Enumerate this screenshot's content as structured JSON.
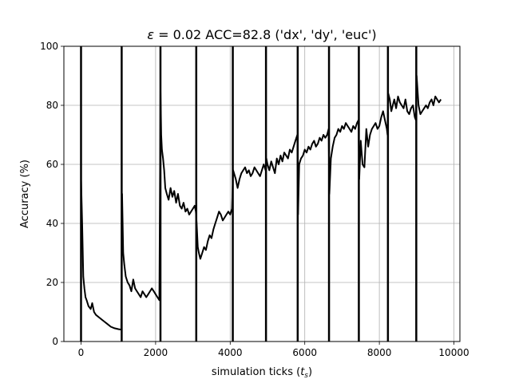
{
  "chart_data": {
    "type": "line",
    "title_prefix": "ε",
    "title_rest": " = 0.02 ACC=82.8 ('dx', 'dy', 'euc')",
    "xlabel_main": "simulation ticks (",
    "xlabel_sym": "t",
    "xlabel_sub": "s",
    "xlabel_close": ")",
    "ylabel": "Accuracy (%)",
    "xlim": [
      -460,
      10160
    ],
    "ylim": [
      0,
      100
    ],
    "x_ticks": [
      0,
      2000,
      4000,
      6000,
      8000,
      10000
    ],
    "x_tick_labels": [
      "0",
      "2000",
      "4000",
      "6000",
      "8000",
      "10000"
    ],
    "y_ticks": [
      0,
      20,
      40,
      60,
      80,
      100
    ],
    "y_tick_labels": [
      "0",
      "20",
      "40",
      "60",
      "80",
      "100"
    ],
    "grid": true,
    "line_color": "#000000",
    "vertical_lines_x": [
      0,
      1090,
      2130,
      3090,
      4070,
      4960,
      5810,
      6650,
      7450,
      8230,
      8990
    ],
    "series": [
      {
        "x": [
          0,
          30,
          60,
          90,
          120,
          150,
          200,
          260,
          300,
          350,
          400,
          500,
          600,
          700,
          800,
          900,
          1000,
          1080,
          1100,
          1130,
          1160,
          1200,
          1250,
          1300,
          1350,
          1400,
          1450,
          1500,
          1550,
          1600,
          1650,
          1700,
          1750,
          1800,
          1850,
          1900,
          1950,
          2000,
          2050,
          2100,
          2130,
          2150,
          2170,
          2200,
          2230,
          2260,
          2300,
          2350,
          2400,
          2450,
          2500,
          2550,
          2600,
          2650,
          2700,
          2750,
          2800,
          2850,
          2900,
          2950,
          3000,
          3050,
          3080,
          3100,
          3130,
          3160,
          3200,
          3250,
          3300,
          3350,
          3400,
          3450,
          3500,
          3550,
          3600,
          3650,
          3700,
          3750,
          3800,
          3850,
          3900,
          3950,
          4000,
          4050,
          4080,
          4150,
          4200,
          4250,
          4300,
          4350,
          4400,
          4450,
          4500,
          4550,
          4600,
          4650,
          4700,
          4750,
          4800,
          4850,
          4900,
          4950,
          4970,
          5000,
          5050,
          5100,
          5150,
          5200,
          5250,
          5300,
          5350,
          5400,
          5450,
          5500,
          5550,
          5600,
          5650,
          5700,
          5750,
          5800,
          5820,
          5850,
          5900,
          5950,
          6000,
          6050,
          6100,
          6150,
          6200,
          6250,
          6300,
          6350,
          6400,
          6450,
          6500,
          6550,
          6600,
          6640,
          6660,
          6700,
          6750,
          6800,
          6850,
          6900,
          6950,
          7000,
          7050,
          7100,
          7150,
          7200,
          7250,
          7300,
          7350,
          7400,
          7440,
          7460,
          7500,
          7550,
          7600,
          7650,
          7700,
          7750,
          7800,
          7850,
          7900,
          7950,
          8000,
          8050,
          8100,
          8150,
          8200,
          8220,
          8240,
          8280,
          8320,
          8360,
          8400,
          8450,
          8500,
          8550,
          8600,
          8650,
          8700,
          8750,
          8800,
          8850,
          8900,
          8950,
          8980,
          9000,
          9050,
          9100,
          9150,
          9200,
          9250,
          9300,
          9350,
          9400,
          9450,
          9500,
          9550,
          9600,
          9650
        ],
        "y": [
          55,
          40,
          22,
          18,
          15,
          14,
          12,
          11,
          13,
          10,
          9,
          8,
          7,
          6,
          5,
          4.5,
          4.2,
          4,
          50,
          30,
          26,
          22,
          20,
          19,
          17,
          21,
          18,
          17,
          16,
          15,
          17,
          16,
          15,
          16,
          17,
          18,
          17,
          16,
          15,
          14,
          85,
          70,
          65,
          62,
          58,
          52,
          50,
          48,
          52,
          49,
          51,
          47,
          50,
          46,
          45,
          47,
          44,
          45,
          43,
          44,
          45,
          46,
          44,
          40,
          32,
          30,
          28,
          30,
          32,
          31,
          34,
          36,
          35,
          38,
          40,
          42,
          44,
          43,
          41,
          42,
          43,
          44,
          43,
          45,
          58,
          55,
          52,
          55,
          57,
          58,
          59,
          57,
          58,
          56,
          57,
          59,
          58,
          57,
          56,
          58,
          60,
          58,
          62,
          60,
          58,
          61,
          59,
          57,
          62,
          60,
          63,
          61,
          64,
          63,
          62,
          65,
          64,
          66,
          68,
          70,
          43,
          60,
          62,
          63,
          65,
          64,
          66,
          65,
          67,
          68,
          66,
          67,
          69,
          68,
          70,
          69,
          70,
          72,
          50,
          62,
          66,
          69,
          70,
          72,
          71,
          73,
          72,
          74,
          73,
          72,
          71,
          73,
          72,
          74,
          75,
          55,
          68,
          60,
          59,
          72,
          66,
          70,
          72,
          73,
          74,
          72,
          73,
          76,
          78,
          75,
          72,
          70,
          84,
          82,
          78,
          80,
          82,
          79,
          83,
          81,
          80,
          79,
          82,
          78,
          77,
          79,
          80,
          76,
          75,
          90,
          80,
          77,
          78,
          79,
          80,
          79,
          81,
          82,
          80,
          83,
          82,
          81,
          82
        ]
      }
    ]
  }
}
